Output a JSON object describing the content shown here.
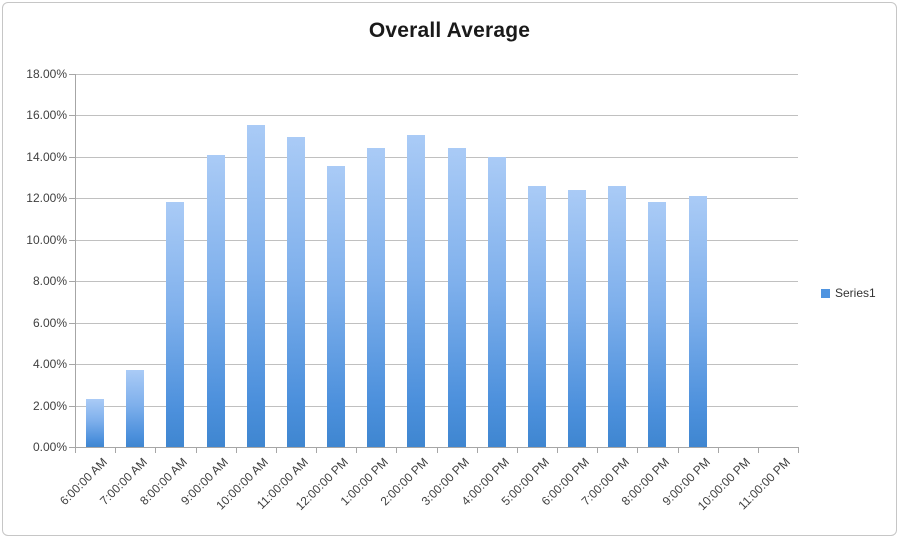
{
  "chart_data": {
    "type": "bar",
    "title": "Overall Average",
    "categories": [
      "6:00:00 AM",
      "7:00:00 AM",
      "8:00:00 AM",
      "9:00:00 AM",
      "10:00:00 AM",
      "11:00:00 AM",
      "12:00:00 PM",
      "1:00:00 PM",
      "2:00:00 PM",
      "3:00:00 PM",
      "4:00:00 PM",
      "5:00:00 PM",
      "6:00:00 PM",
      "7:00:00 PM",
      "8:00:00 PM",
      "9:00:00 PM",
      "10:00:00 PM",
      "11:00:00 PM"
    ],
    "series": [
      {
        "name": "Series1",
        "values": [
          2.3,
          3.7,
          11.8,
          14.1,
          15.55,
          14.95,
          13.55,
          14.45,
          15.05,
          14.45,
          14.0,
          12.6,
          12.4,
          12.6,
          11.8,
          12.1,
          0.0,
          0.0
        ]
      }
    ],
    "xlabel": "",
    "ylabel": "",
    "ylim": [
      0,
      18
    ],
    "ytick_step": 2,
    "ytick_labels": [
      "0.00%",
      "2.00%",
      "4.00%",
      "6.00%",
      "8.00%",
      "10.00%",
      "12.00%",
      "14.00%",
      "16.00%",
      "18.00%"
    ],
    "grid": true,
    "legend_position": "right",
    "legend_items": [
      {
        "label": "Series1",
        "color": "#4f94e0"
      }
    ],
    "colors": {
      "bar_top": "#aacbf6",
      "bar_bottom": "#3f86d0",
      "gridline": "#c0c0c0",
      "axis": "#a6a6a6",
      "label_text": "#404040",
      "title_text": "#1a1a1a",
      "frame_border": "#c6c6c6"
    }
  }
}
